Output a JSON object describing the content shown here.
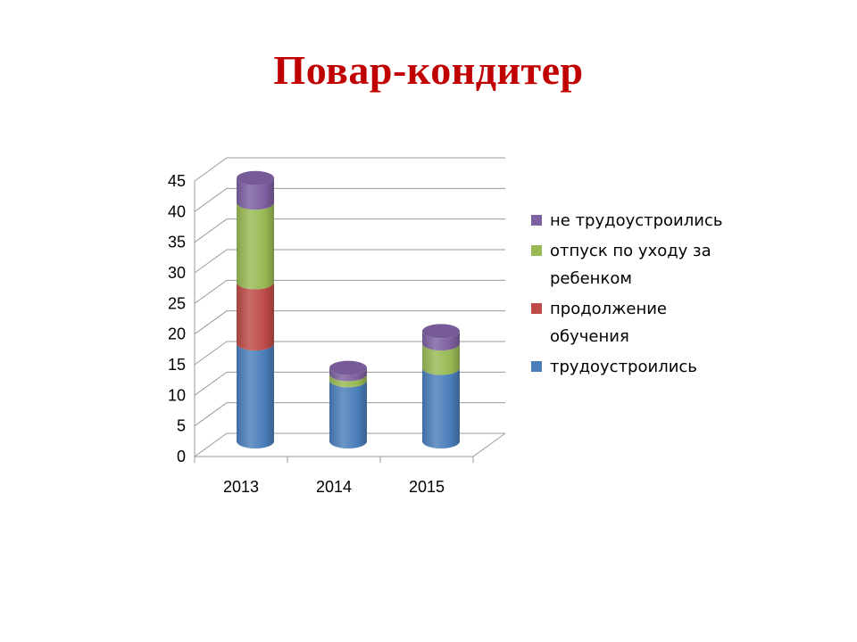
{
  "title": "Повар-кондитер",
  "chart_data": {
    "type": "bar",
    "stacked": true,
    "style": "3d-cylinder",
    "categories": [
      "2013",
      "2014",
      "2015"
    ],
    "series": [
      {
        "name": "трудоустроились",
        "color": "#4a7ebb",
        "values": [
          16,
          10,
          12
        ]
      },
      {
        "name": "продолжение обучения",
        "color": "#be4b48",
        "values": [
          10,
          0,
          0
        ]
      },
      {
        "name": "отпуск по уходу за ребенком",
        "color": "#98b954",
        "values": [
          13,
          1,
          4
        ]
      },
      {
        "name": "не трудоустроились",
        "color": "#7d60a0",
        "values": [
          4,
          1,
          2
        ]
      }
    ],
    "y_ticks": [
      "0",
      "5",
      "10",
      "15",
      "20",
      "25",
      "30",
      "35",
      "40",
      "45"
    ],
    "ylim": [
      0,
      45
    ],
    "grid": true,
    "legend_position": "right"
  }
}
